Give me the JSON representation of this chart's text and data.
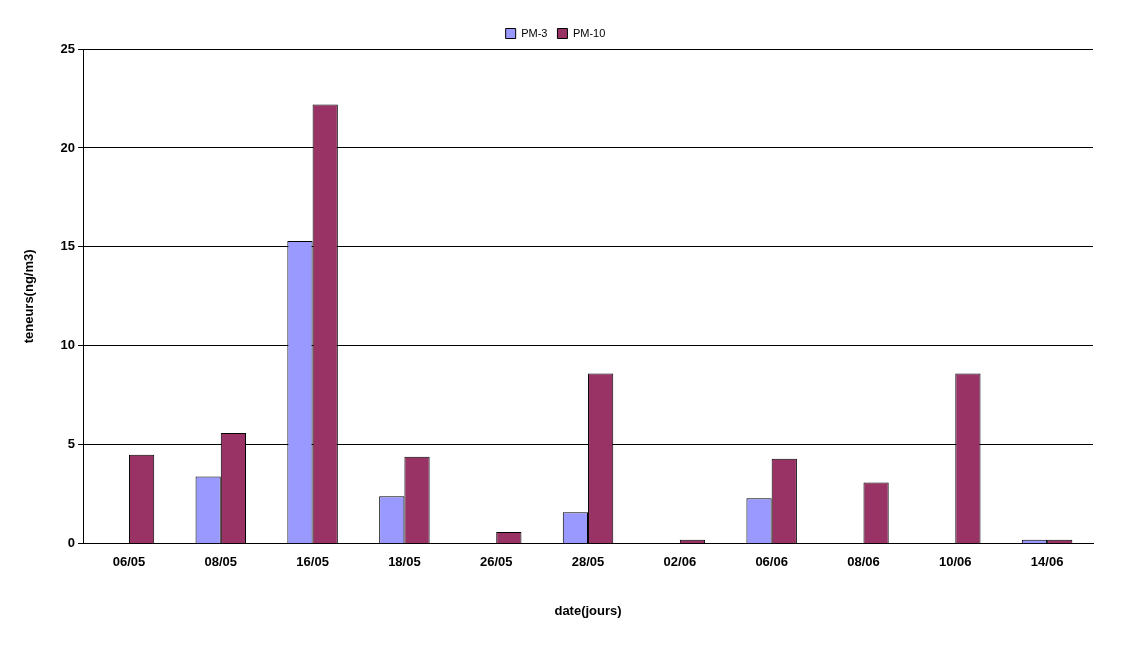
{
  "chart_data": {
    "type": "bar",
    "xlabel": "date(jours)",
    "ylabel": "teneurs(ng/m3)",
    "categories": [
      "06/05",
      "08/05",
      "16/05",
      "18/05",
      "26/05",
      "28/05",
      "02/06",
      "06/06",
      "08/06",
      "10/06",
      "14/06"
    ],
    "series": [
      {
        "name": "PM-3",
        "color": "#9999ff",
        "values": [
          0,
          3.4,
          15.3,
          2.4,
          0,
          1.6,
          0,
          2.3,
          0,
          0,
          0.2
        ]
      },
      {
        "name": "PM-10",
        "color": "#993366",
        "values": [
          4.5,
          5.6,
          22.2,
          4.4,
          0.6,
          8.6,
          0.2,
          4.3,
          3.1,
          8.6,
          0.2
        ]
      }
    ],
    "ylim": [
      0,
      25
    ],
    "yticks": [
      0,
      5,
      10,
      15,
      20,
      25
    ],
    "grid": "y",
    "legend": "top"
  }
}
